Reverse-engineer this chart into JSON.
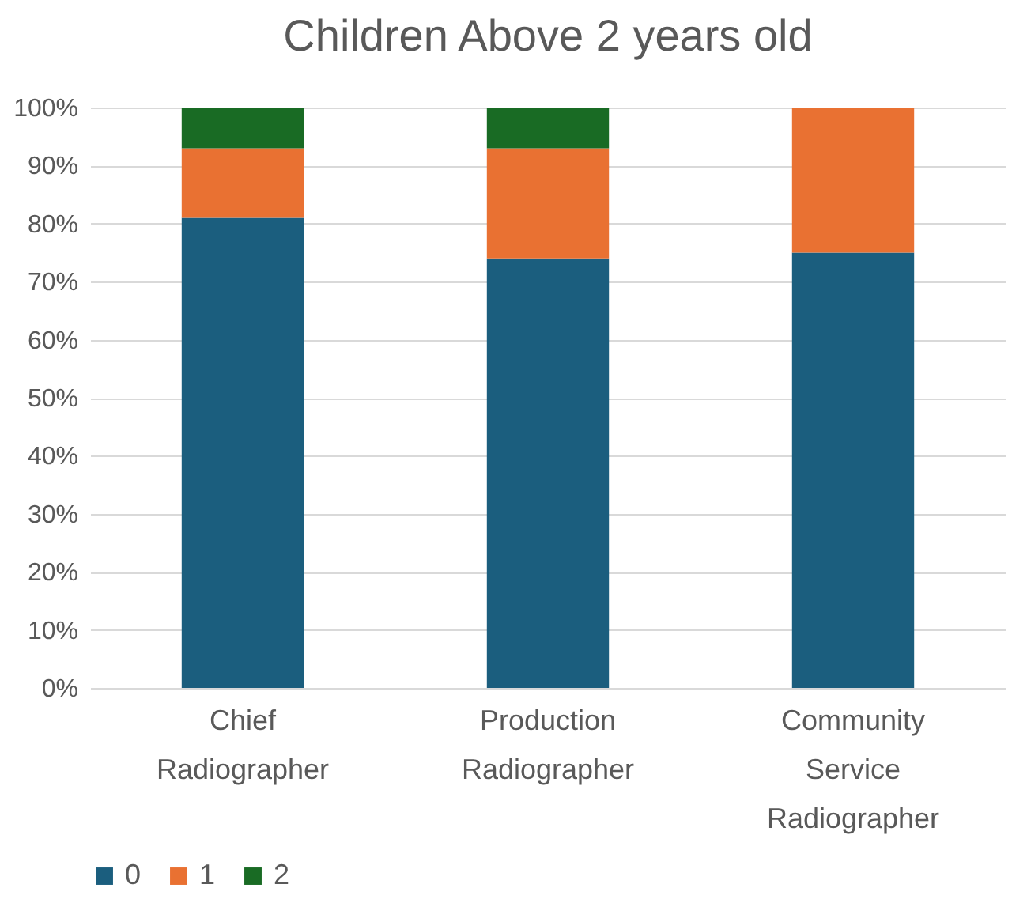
{
  "chart_data": {
    "type": "bar",
    "stacked": true,
    "title": "Children Above 2 years old",
    "categories": [
      "Chief Radiographer",
      "Production Radiographer",
      "Community Service Radiographer"
    ],
    "series": [
      {
        "name": "0",
        "color": "#1b5e7e",
        "values": [
          81,
          74,
          75
        ]
      },
      {
        "name": "1",
        "color": "#e97132",
        "values": [
          12,
          19,
          25
        ]
      },
      {
        "name": "2",
        "color": "#196b24",
        "values": [
          7,
          7,
          0
        ]
      }
    ],
    "ylim": [
      0,
      100
    ],
    "yticks": [
      {
        "value": 0,
        "label": "0%"
      },
      {
        "value": 10,
        "label": "10%"
      },
      {
        "value": 20,
        "label": "20%"
      },
      {
        "value": 30,
        "label": "30%"
      },
      {
        "value": 40,
        "label": "40%"
      },
      {
        "value": 50,
        "label": "50%"
      },
      {
        "value": 60,
        "label": "60%"
      },
      {
        "value": 70,
        "label": "70%"
      },
      {
        "value": 80,
        "label": "80%"
      },
      {
        "value": 90,
        "label": "90%"
      },
      {
        "value": 100,
        "label": "100%"
      }
    ],
    "grid": "y",
    "legend": "bottom"
  }
}
